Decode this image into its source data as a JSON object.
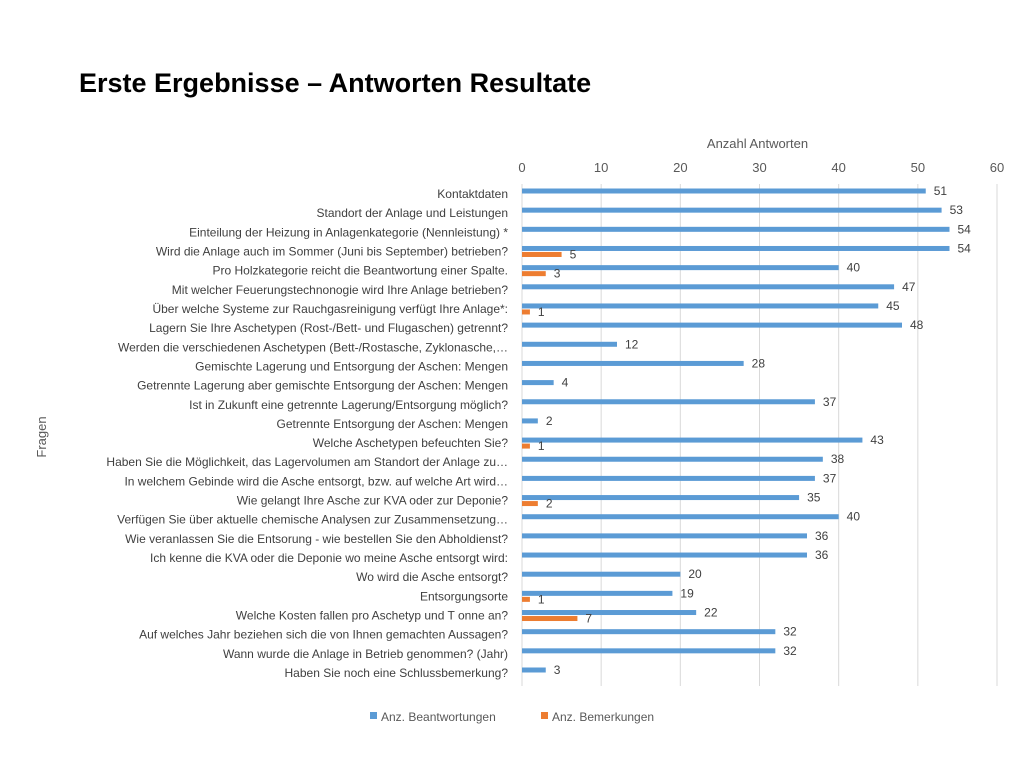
{
  "slide": {
    "title": "Erste Ergebnisse – Antworten Resultate"
  },
  "chart_data": {
    "type": "bar",
    "orientation": "horizontal",
    "x_axis_position": "top",
    "xlabel": "Anzahl Antworten",
    "ylabel": "Fragen",
    "xlim": [
      0,
      60
    ],
    "xticks": [
      "0",
      "10",
      "20",
      "30",
      "40",
      "50",
      "60"
    ],
    "grid": true,
    "legend": "bottom",
    "categories": [
      "Kontaktdaten",
      "Standort der Anlage und Leistungen",
      "Einteilung der Heizung in Anlagenkategorie (Nennleistung) *",
      "Wird die Anlage auch im Sommer (Juni bis September) betrieben?",
      "Pro Holzkategorie reicht die Beantwortung einer Spalte.",
      "Mit welcher Feuerungstechnonogie wird Ihre Anlage betrieben?",
      "Über welche Systeme zur Rauchgasreinigung verfügt Ihre Anlage*:",
      "Lagern Sie Ihre Aschetypen (Rost-/Bett- und Flugaschen) getrennt?",
      "Werden die verschiedenen Aschetypen (Bett-/Rostasche, Zyklonasche,…",
      "Gemischte Lagerung und Entsorgung der Aschen: Mengen",
      "Getrennte Lagerung aber gemischte Entsorgung der Aschen: Mengen",
      "Ist in Zukunft eine getrennte Lagerung/Entsorgung möglich?",
      "Getrennte Entsorgung der Aschen: Mengen",
      "Welche Aschetypen befeuchten Sie?",
      "Haben Sie die Möglichkeit, das Lagervolumen am Standort der Anlage zu…",
      "In welchem Gebinde wird die Asche entsorgt, bzw. auf welche Art wird…",
      "Wie gelangt Ihre Asche zur KVA oder zur Deponie?",
      "Verfügen Sie über aktuelle chemische Analysen zur Zusammensetzung…",
      "Wie veranlassen Sie die Entsorung - wie bestellen Sie den Abholdienst?",
      "Ich kenne die KVA oder die Deponie wo meine Asche entsorgt wird:",
      "Wo wird die Asche entsorgt?",
      "Entsorgungsorte",
      "Welche Kosten fallen pro Aschetyp und T onne an?",
      "Auf welches Jahr beziehen sich die von Ihnen gemachten Aussagen?",
      "Wann wurde die Anlage in Betrieb genommen? (Jahr)",
      "Haben Sie noch eine Schlussbemerkung?"
    ],
    "series": [
      {
        "name": "Anz. Beantwortungen",
        "color": "#5B9BD5",
        "values": [
          51,
          53,
          54,
          54,
          40,
          47,
          45,
          48,
          12,
          28,
          4,
          37,
          2,
          43,
          38,
          37,
          35,
          40,
          36,
          36,
          20,
          19,
          22,
          32,
          32,
          3
        ]
      },
      {
        "name": "Anz. Bemerkungen",
        "color": "#ED7D31",
        "values": [
          null,
          null,
          null,
          5,
          3,
          null,
          1,
          null,
          null,
          null,
          null,
          null,
          null,
          1,
          null,
          null,
          2,
          null,
          null,
          null,
          null,
          1,
          7,
          null,
          null,
          null
        ]
      }
    ]
  }
}
